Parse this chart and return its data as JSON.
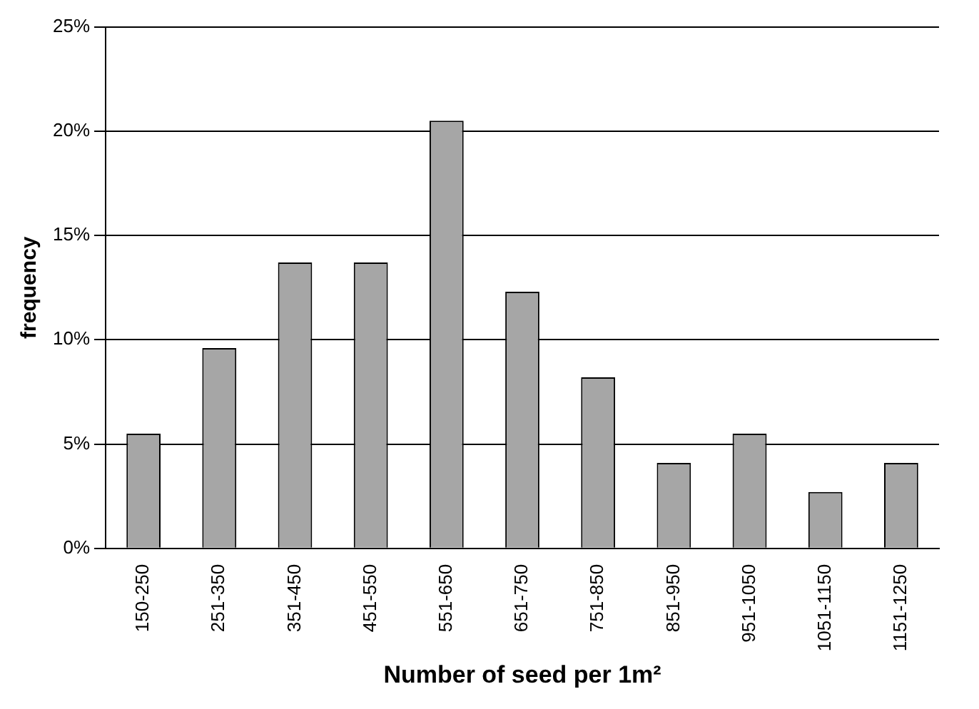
{
  "chart_data": {
    "type": "bar",
    "xlabel": "Number of seed per 1m²",
    "ylabel": "frequency",
    "categories": [
      "150-250",
      "251-350",
      "351-450",
      "451-550",
      "551-650",
      "651-750",
      "751-850",
      "851-950",
      "951-1050",
      "1051-1150",
      "1151-1250"
    ],
    "values": [
      5.5,
      9.6,
      13.7,
      13.7,
      20.5,
      12.3,
      8.2,
      4.1,
      5.5,
      2.7,
      4.1
    ],
    "color": "#a6a6a6",
    "ylim": [
      0,
      25
    ],
    "yticks": [
      {
        "value": 0,
        "label": "0%"
      },
      {
        "value": 5,
        "label": "5%"
      },
      {
        "value": 10,
        "label": "10%"
      },
      {
        "value": 15,
        "label": "15%"
      },
      {
        "value": 20,
        "label": "20%"
      },
      {
        "value": 25,
        "label": "25%"
      }
    ],
    "grid": "y",
    "legend": false
  }
}
